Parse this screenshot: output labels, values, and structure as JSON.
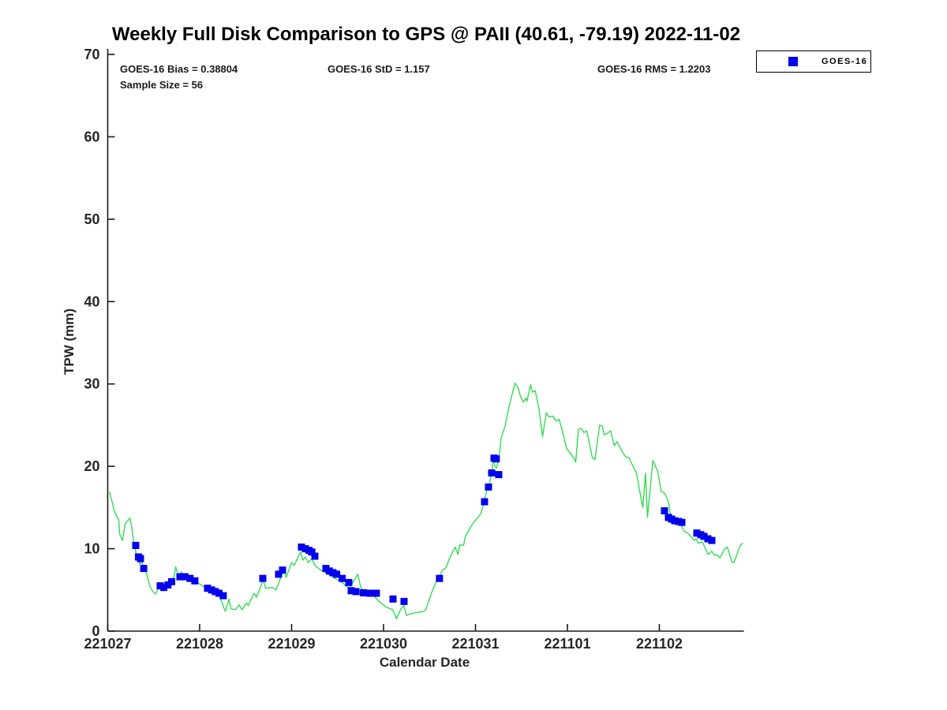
{
  "title": "Weekly Full Disk Comparison to GPS @ PAII (40.61, -79.19) 2022-11-02",
  "stats": {
    "bias": "GOES-16 Bias = 0.38804",
    "std": "GOES-16 StD = 1.157",
    "rms": "GOES-16 RMS = 1.2203",
    "sample_size": "Sample Size = 56"
  },
  "legend": {
    "entries": [
      {
        "label": "GOES-16",
        "marker": "square-icon",
        "color": "#0000EE"
      }
    ]
  },
  "colors": {
    "gps_line": "#33DB55",
    "goes16_marker": "#0000EE",
    "axis": "#1a1a1a",
    "background": "#FFFFFF"
  },
  "chart_data": {
    "type": "line",
    "title": "Weekly Full Disk Comparison to GPS @ PAII (40.61, -79.19) 2022-11-02",
    "xlabel": "Calendar Date",
    "ylabel": "TPW (mm)",
    "ylim": [
      0,
      70
    ],
    "yticks": [
      0,
      10,
      20,
      30,
      40,
      50,
      60,
      70
    ],
    "x_tick_labels": [
      "221027",
      "221028",
      "221029",
      "221030",
      "221031",
      "221101",
      "221102"
    ],
    "x_tick_days": [
      0,
      1,
      2,
      3,
      4,
      5,
      6
    ],
    "xlim_days": [
      0,
      6.92
    ],
    "grid": false,
    "legend_position": "top-right-outside",
    "series": [
      {
        "name": "GPS",
        "type": "line",
        "color": "#33DB55",
        "points_day_value": [
          [
            0.02,
            16.9
          ],
          [
            0.05,
            15.6
          ],
          [
            0.07,
            14.6
          ],
          [
            0.12,
            13.5
          ],
          [
            0.13,
            11.8
          ],
          [
            0.16,
            11.0
          ],
          [
            0.19,
            13.0
          ],
          [
            0.24,
            13.7
          ],
          [
            0.26,
            12.7
          ],
          [
            0.29,
            10.3
          ],
          [
            0.32,
            9.0
          ],
          [
            0.35,
            8.1
          ],
          [
            0.37,
            8.5
          ],
          [
            0.39,
            7.6
          ],
          [
            0.42,
            7.1
          ],
          [
            0.46,
            5.4
          ],
          [
            0.49,
            4.8
          ],
          [
            0.52,
            4.5
          ],
          [
            0.55,
            5.2
          ],
          [
            0.57,
            5.4
          ],
          [
            0.59,
            4.9
          ],
          [
            0.61,
            5.2
          ],
          [
            0.64,
            5.6
          ],
          [
            0.67,
            5.7
          ],
          [
            0.69,
            6.1
          ],
          [
            0.72,
            6.5
          ],
          [
            0.74,
            7.8
          ],
          [
            0.76,
            7.0
          ],
          [
            0.79,
            6.7
          ],
          [
            0.8,
            7.2
          ],
          [
            0.83,
            6.6
          ],
          [
            0.85,
            6.8
          ],
          [
            0.89,
            6.5
          ],
          [
            0.91,
            6.3
          ],
          [
            0.95,
            6.2
          ],
          [
            0.99,
            5.8
          ],
          [
            1.03,
            5.5
          ],
          [
            1.09,
            5.1
          ],
          [
            1.13,
            4.9
          ],
          [
            1.16,
            4.8
          ],
          [
            1.21,
            4.5
          ],
          [
            1.23,
            3.9
          ],
          [
            1.26,
            2.9
          ],
          [
            1.28,
            2.4
          ],
          [
            1.32,
            3.9
          ],
          [
            1.34,
            2.7
          ],
          [
            1.39,
            2.6
          ],
          [
            1.43,
            3.2
          ],
          [
            1.46,
            2.6
          ],
          [
            1.51,
            3.4
          ],
          [
            1.53,
            3.1
          ],
          [
            1.59,
            4.6
          ],
          [
            1.62,
            4.1
          ],
          [
            1.69,
            6.2
          ],
          [
            1.72,
            5.2
          ],
          [
            1.79,
            5.3
          ],
          [
            1.83,
            5.0
          ],
          [
            1.92,
            7.6
          ],
          [
            1.94,
            6.5
          ],
          [
            2.0,
            8.3
          ],
          [
            2.03,
            8.0
          ],
          [
            2.07,
            9.0
          ],
          [
            2.1,
            9.6
          ],
          [
            2.12,
            8.6
          ],
          [
            2.15,
            9.0
          ],
          [
            2.18,
            8.3
          ],
          [
            2.22,
            8.8
          ],
          [
            2.26,
            7.9
          ],
          [
            2.32,
            7.4
          ],
          [
            2.4,
            6.9
          ],
          [
            2.47,
            6.4
          ],
          [
            2.55,
            5.9
          ],
          [
            2.6,
            5.4
          ],
          [
            2.63,
            5.2
          ],
          [
            2.72,
            6.9
          ],
          [
            2.75,
            5.4
          ],
          [
            2.78,
            4.8
          ],
          [
            2.84,
            4.6
          ],
          [
            2.88,
            4.5
          ],
          [
            2.95,
            3.6
          ],
          [
            3.03,
            2.9
          ],
          [
            3.1,
            2.6
          ],
          [
            3.14,
            1.5
          ],
          [
            3.19,
            2.7
          ],
          [
            3.22,
            3.1
          ],
          [
            3.25,
            1.9
          ],
          [
            3.29,
            2.1
          ],
          [
            3.38,
            2.3
          ],
          [
            3.44,
            2.4
          ],
          [
            3.46,
            2.6
          ],
          [
            3.52,
            4.6
          ],
          [
            3.58,
            6.2
          ],
          [
            3.61,
            6.7
          ],
          [
            3.64,
            7.4
          ],
          [
            3.68,
            7.7
          ],
          [
            3.72,
            8.9
          ],
          [
            3.76,
            9.8
          ],
          [
            3.78,
            10.2
          ],
          [
            3.81,
            9.3
          ],
          [
            3.83,
            10.5
          ],
          [
            3.87,
            10.4
          ],
          [
            3.89,
            11.5
          ],
          [
            3.94,
            12.5
          ],
          [
            3.98,
            13.2
          ],
          [
            4.02,
            13.7
          ],
          [
            4.06,
            14.3
          ],
          [
            4.09,
            15.5
          ],
          [
            4.12,
            17.0
          ],
          [
            4.15,
            17.8
          ],
          [
            4.18,
            19.3
          ],
          [
            4.19,
            21.4
          ],
          [
            4.21,
            20.0
          ],
          [
            4.23,
            19.8
          ],
          [
            4.26,
            21.5
          ],
          [
            4.28,
            23.5
          ],
          [
            4.32,
            24.8
          ],
          [
            4.36,
            27.0
          ],
          [
            4.4,
            28.8
          ],
          [
            4.43,
            30.1
          ],
          [
            4.46,
            29.6
          ],
          [
            4.49,
            28.5
          ],
          [
            4.52,
            27.8
          ],
          [
            4.55,
            28.3
          ],
          [
            4.56,
            27.9
          ],
          [
            4.6,
            29.9
          ],
          [
            4.62,
            29.0
          ],
          [
            4.65,
            29.2
          ],
          [
            4.69,
            27.0
          ],
          [
            4.73,
            23.6
          ],
          [
            4.77,
            26.5
          ],
          [
            4.8,
            26.0
          ],
          [
            4.84,
            26.1
          ],
          [
            4.88,
            25.5
          ],
          [
            4.91,
            25.7
          ],
          [
            4.95,
            24.1
          ],
          [
            4.99,
            22.2
          ],
          [
            5.07,
            21.0
          ],
          [
            5.09,
            20.5
          ],
          [
            5.12,
            24.5
          ],
          [
            5.15,
            24.6
          ],
          [
            5.18,
            24.1
          ],
          [
            5.21,
            24.3
          ],
          [
            5.27,
            21.1
          ],
          [
            5.3,
            20.8
          ],
          [
            5.35,
            25.0
          ],
          [
            5.38,
            24.9
          ],
          [
            5.4,
            23.8
          ],
          [
            5.43,
            24.0
          ],
          [
            5.47,
            24.3
          ],
          [
            5.51,
            22.5
          ],
          [
            5.54,
            23.0
          ],
          [
            5.59,
            21.9
          ],
          [
            5.63,
            21.2
          ],
          [
            5.67,
            21.0
          ],
          [
            5.7,
            20.3
          ],
          [
            5.75,
            19.2
          ],
          [
            5.82,
            15.0
          ],
          [
            5.85,
            19.2
          ],
          [
            5.87,
            13.8
          ],
          [
            5.93,
            20.7
          ],
          [
            5.98,
            19.5
          ],
          [
            6.02,
            17.0
          ],
          [
            6.06,
            16.7
          ],
          [
            6.1,
            15.7
          ],
          [
            6.12,
            14.0
          ],
          [
            6.15,
            13.5
          ],
          [
            6.19,
            13.2
          ],
          [
            6.23,
            13.0
          ],
          [
            6.27,
            12.1
          ],
          [
            6.31,
            11.9
          ],
          [
            6.38,
            11.0
          ],
          [
            6.4,
            11.2
          ],
          [
            6.42,
            10.7
          ],
          [
            6.47,
            10.8
          ],
          [
            6.53,
            9.3
          ],
          [
            6.57,
            9.7
          ],
          [
            6.6,
            9.2
          ],
          [
            6.62,
            9.3
          ],
          [
            6.66,
            8.9
          ],
          [
            6.71,
            10.0
          ],
          [
            6.74,
            10.2
          ],
          [
            6.79,
            8.4
          ],
          [
            6.81,
            8.3
          ],
          [
            6.88,
            10.4
          ],
          [
            6.91,
            10.7
          ]
        ]
      },
      {
        "name": "GOES-16",
        "type": "scatter",
        "marker": "square",
        "color": "#0000EE",
        "sample_size": 56,
        "points_day_value": [
          [
            0.305,
            10.4
          ],
          [
            0.335,
            9.0
          ],
          [
            0.356,
            8.8
          ],
          [
            0.391,
            7.6
          ],
          [
            0.571,
            5.5
          ],
          [
            0.61,
            5.3
          ],
          [
            0.655,
            5.6
          ],
          [
            0.695,
            6.0
          ],
          [
            0.785,
            6.6
          ],
          [
            0.84,
            6.6
          ],
          [
            0.895,
            6.4
          ],
          [
            0.948,
            6.1
          ],
          [
            1.086,
            5.2
          ],
          [
            1.13,
            5.0
          ],
          [
            1.17,
            4.8
          ],
          [
            1.21,
            4.6
          ],
          [
            1.257,
            4.3
          ],
          [
            1.687,
            6.4
          ],
          [
            1.858,
            6.9
          ],
          [
            1.901,
            7.4
          ],
          [
            2.107,
            10.2
          ],
          [
            2.15,
            10.0
          ],
          [
            2.19,
            9.8
          ],
          [
            2.22,
            9.6
          ],
          [
            2.253,
            9.1
          ],
          [
            2.373,
            7.6
          ],
          [
            2.41,
            7.3
          ],
          [
            2.45,
            7.1
          ],
          [
            2.49,
            6.9
          ],
          [
            2.55,
            6.4
          ],
          [
            2.622,
            5.9
          ],
          [
            2.648,
            4.9
          ],
          [
            2.7,
            4.8
          ],
          [
            2.78,
            4.65
          ],
          [
            2.85,
            4.6
          ],
          [
            2.922,
            4.6
          ],
          [
            3.103,
            3.9
          ],
          [
            3.223,
            3.6
          ],
          [
            3.609,
            6.4
          ],
          [
            4.099,
            15.7
          ],
          [
            4.142,
            17.5
          ],
          [
            4.176,
            19.2
          ],
          [
            4.202,
            21.0
          ],
          [
            4.227,
            20.9
          ],
          [
            4.253,
            19.0
          ],
          [
            6.056,
            14.6
          ],
          [
            6.099,
            13.8
          ],
          [
            6.133,
            13.6
          ],
          [
            6.167,
            13.4
          ],
          [
            6.21,
            13.3
          ],
          [
            6.245,
            13.2
          ],
          [
            6.408,
            11.9
          ],
          [
            6.451,
            11.7
          ],
          [
            6.485,
            11.5
          ],
          [
            6.528,
            11.2
          ],
          [
            6.571,
            11.0
          ]
        ]
      }
    ]
  }
}
